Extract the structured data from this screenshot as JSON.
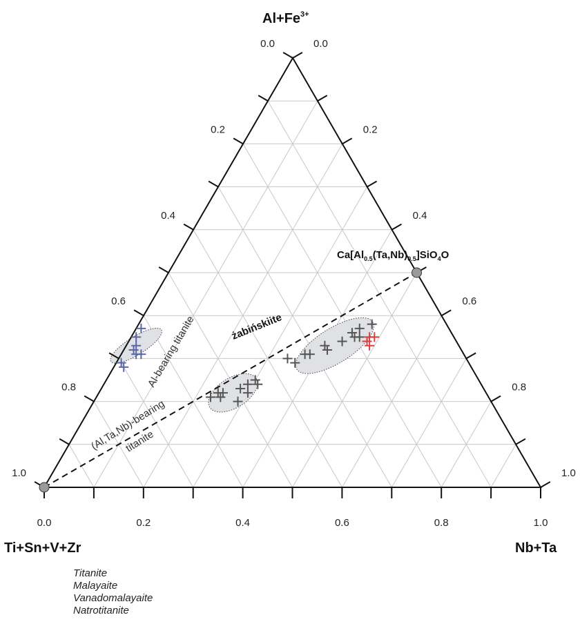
{
  "chart_data": {
    "type": "ternary",
    "apex_labels": {
      "top": "Al+Fe",
      "top_sup": "3+",
      "left": "Ti+Sn+V+Zr",
      "right": "Nb+Ta"
    },
    "tick_labels": {
      "bottom": [
        "0.0",
        "0.2",
        "0.4",
        "0.6",
        "0.8",
        "1.0"
      ],
      "left": [
        "1.0",
        "0.8",
        "0.6",
        "0.4",
        "0.2",
        "0.0"
      ],
      "right": [
        "0.0",
        "0.2",
        "0.4",
        "0.6",
        "0.8",
        "1.0"
      ]
    },
    "grid_step": 0.1,
    "endmembers": [
      {
        "label_parts": [
          "Ca[Al",
          "0.5",
          "(Ta,Nb)",
          "0.5",
          "]SiO",
          "4",
          "O"
        ],
        "a": 0.5,
        "b": 0.5
      },
      {
        "label_parts": [],
        "a": 0.0,
        "b": 0.0
      }
    ],
    "dashed_line": {
      "from": [
        0.0,
        0.0
      ],
      "to": [
        0.5,
        0.5
      ]
    },
    "annotations": {
      "al_titanite": "Al-bearing titanite",
      "altanb_line1": "(Al,Ta,Nb)-bearing",
      "altanb_line2": "titanite",
      "zabinskiite": "żabińskiite"
    },
    "series": [
      {
        "name": "",
        "color": "#5a66a8",
        "points": [
          [
            0.37,
            0.01
          ],
          [
            0.35,
            0.01
          ],
          [
            0.33,
            0.02
          ],
          [
            0.32,
            0.02
          ],
          [
            0.31,
            0.03
          ],
          [
            0.31,
            0.04
          ],
          [
            0.29,
            0.01
          ],
          [
            0.28,
            0.02
          ]
        ]
      },
      {
        "name": "",
        "color": "#555555",
        "points": [
          [
            0.21,
            0.23
          ],
          [
            0.22,
            0.24
          ],
          [
            0.21,
            0.25
          ],
          [
            0.22,
            0.25
          ],
          [
            0.22,
            0.3
          ],
          [
            0.23,
            0.28
          ],
          [
            0.24,
            0.29
          ],
          [
            0.25,
            0.3
          ],
          [
            0.2,
            0.29
          ],
          [
            0.24,
            0.31
          ],
          [
            0.3,
            0.34
          ],
          [
            0.29,
            0.36
          ],
          [
            0.31,
            0.37
          ],
          [
            0.31,
            0.38
          ],
          [
            0.33,
            0.4
          ],
          [
            0.32,
            0.41
          ],
          [
            0.34,
            0.43
          ],
          [
            0.36,
            0.44
          ],
          [
            0.35,
            0.45
          ],
          [
            0.38,
            0.47
          ],
          [
            0.35,
            0.46
          ],
          [
            0.37,
            0.45
          ]
        ]
      },
      {
        "name": "",
        "color": "#d84040",
        "points": [
          [
            0.35,
            0.48
          ],
          [
            0.34,
            0.48
          ],
          [
            0.35,
            0.49
          ],
          [
            0.33,
            0.49
          ]
        ]
      }
    ],
    "fields": [
      {
        "center": [
          0.33,
          0.02
        ],
        "rx": 0.06,
        "ry": 0.018
      },
      {
        "center": [
          0.22,
          0.27
        ],
        "rx": 0.055,
        "ry": 0.03
      },
      {
        "center": [
          0.33,
          0.42
        ],
        "rx": 0.09,
        "ry": 0.035
      }
    ]
  },
  "mineral_list": [
    "Titanite",
    "Malayaite",
    "Vanadomalayaite",
    "Natrotitanite"
  ]
}
